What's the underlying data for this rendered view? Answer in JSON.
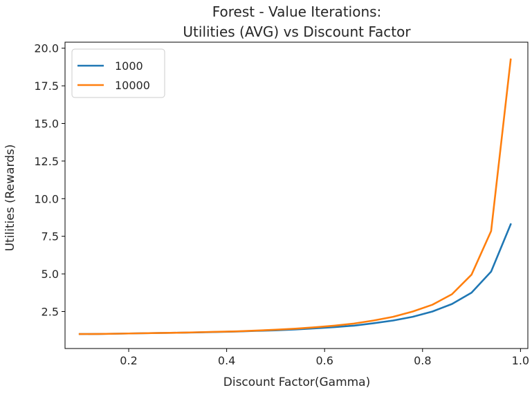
{
  "chart_data": {
    "type": "line",
    "title_lines": [
      "Forest - Value Iterations:",
      "Utilities (AVG) vs Discount Factor"
    ],
    "xlabel": "Discount Factor(Gamma)",
    "ylabel": "Utilities (Rewards)",
    "xlim": [
      0.07,
      1.015
    ],
    "ylim": [
      0.04,
      20.4
    ],
    "x_ticks": [
      0.2,
      0.4,
      0.6,
      0.8,
      1.0
    ],
    "x_tick_labels": [
      "0.2",
      "0.4",
      "0.6",
      "0.8",
      "1.0"
    ],
    "y_ticks": [
      2.5,
      5.0,
      7.5,
      10.0,
      12.5,
      15.0,
      17.5,
      20.0
    ],
    "y_tick_labels": [
      "2.5",
      "5.0",
      "7.5",
      "10.0",
      "12.5",
      "15.0",
      "17.5",
      "20.0"
    ],
    "grid": false,
    "legend_position": "top-left",
    "x": [
      0.1,
      0.14,
      0.18,
      0.22,
      0.26,
      0.3,
      0.34,
      0.38,
      0.42,
      0.46,
      0.5,
      0.54,
      0.58,
      0.62,
      0.66,
      0.7,
      0.74,
      0.78,
      0.82,
      0.86,
      0.9,
      0.94,
      0.98
    ],
    "series": [
      {
        "name": "1000",
        "color": "#1f77b4",
        "values": [
          1.0,
          1.01,
          1.03,
          1.05,
          1.07,
          1.09,
          1.11,
          1.14,
          1.17,
          1.21,
          1.25,
          1.31,
          1.38,
          1.46,
          1.56,
          1.72,
          1.9,
          2.15,
          2.5,
          3.0,
          3.75,
          5.15,
          8.3
        ]
      },
      {
        "name": "10000",
        "color": "#ff7f0e",
        "values": [
          1.0,
          1.01,
          1.03,
          1.05,
          1.07,
          1.09,
          1.12,
          1.15,
          1.18,
          1.23,
          1.29,
          1.36,
          1.45,
          1.56,
          1.7,
          1.9,
          2.15,
          2.5,
          2.95,
          3.65,
          4.95,
          7.85,
          19.25
        ]
      }
    ]
  }
}
